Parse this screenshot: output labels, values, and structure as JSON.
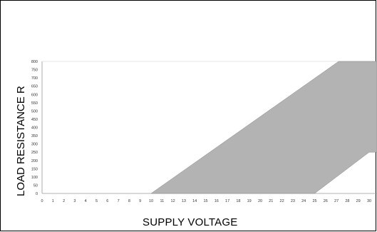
{
  "chart_data": {
    "type": "area",
    "xlabel": "SUPPLY VOLTAGE",
    "ylabel": "LOAD RESISTANCE R",
    "x_ticks": [
      0,
      1,
      2,
      3,
      4,
      5,
      6,
      7,
      8,
      9,
      10,
      11,
      12,
      13,
      14,
      15,
      16,
      17,
      18,
      19,
      20,
      21,
      22,
      23,
      24,
      25,
      26,
      27,
      28,
      29,
      30
    ],
    "y_ticks": [
      0,
      50,
      100,
      150,
      200,
      250,
      300,
      350,
      400,
      450,
      500,
      550,
      600,
      650,
      700,
      750,
      800
    ],
    "xlim": [
      0,
      30
    ],
    "ylim": [
      0,
      800
    ],
    "fill_color": "#b3b3b3",
    "region": {
      "upper_boundary": [
        [
          10,
          0
        ],
        [
          27.2,
          800
        ]
      ],
      "lower_boundary": [
        [
          25,
          0
        ],
        [
          26,
          50
        ],
        [
          30,
          250
        ]
      ]
    }
  }
}
